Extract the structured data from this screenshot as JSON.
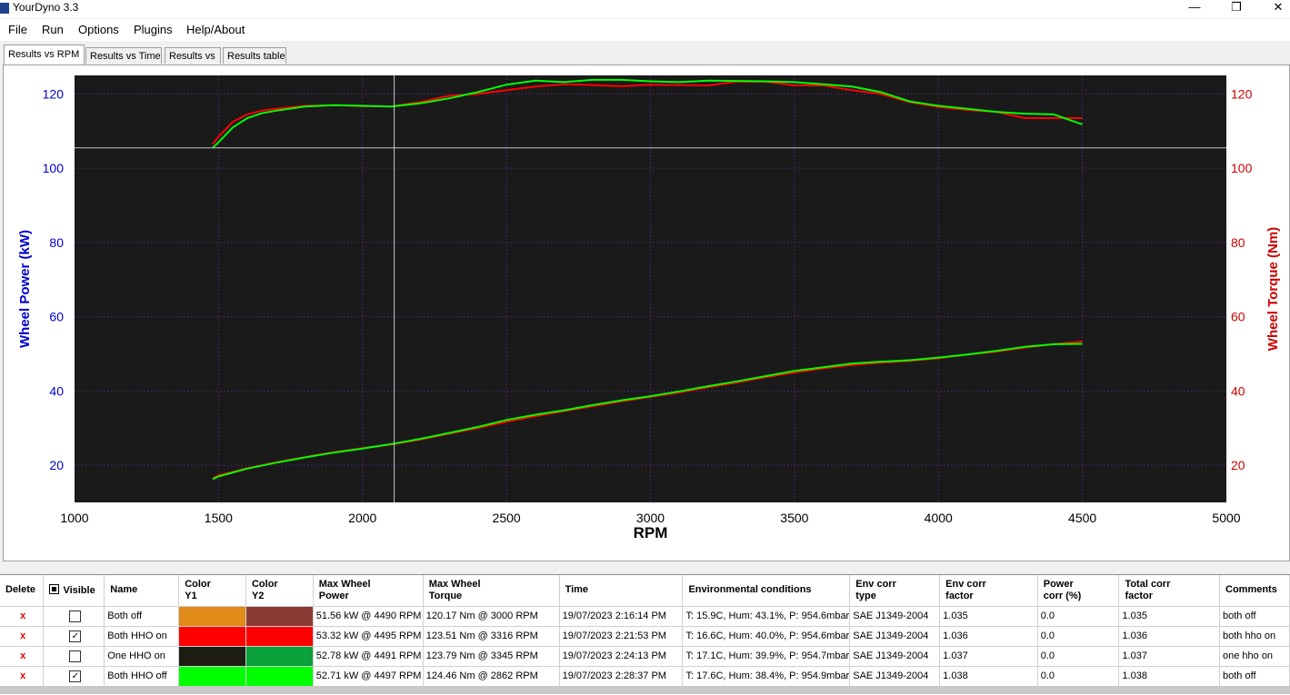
{
  "window": {
    "title": "YourDyno 3.3",
    "minimize_glyph": "—",
    "maximize_glyph": "❐",
    "close_glyph": "✕"
  },
  "menu": [
    {
      "label": "File"
    },
    {
      "label": "Run"
    },
    {
      "label": "Options"
    },
    {
      "label": "Plugins"
    },
    {
      "label": "Help/About"
    }
  ],
  "tabs": [
    {
      "label": "Results vs RPM",
      "active": true
    },
    {
      "label": "Results vs Time",
      "active": false
    },
    {
      "label": "Results vs",
      "active": false
    },
    {
      "label": "Results table",
      "active": false
    }
  ],
  "chart_data": {
    "type": "line",
    "xlabel": "RPM",
    "ylabel": "Wheel Power (kW)",
    "y2label": "Wheel Torque (Nm)",
    "xlim": [
      1000,
      5000
    ],
    "ylim": [
      10,
      125
    ],
    "y2lim": [
      10,
      125
    ],
    "xticks": [
      1000,
      1500,
      2000,
      2500,
      3000,
      3500,
      4000,
      4500,
      5000
    ],
    "yticks": [
      20,
      40,
      60,
      80,
      100,
      120
    ],
    "y2ticks": [
      20,
      40,
      60,
      80,
      100,
      120
    ],
    "background": "#1a1a1a",
    "grid": true,
    "cursor": {
      "x": 2110,
      "y": 105.5
    },
    "colors": {
      "left_axis": "#0000cc",
      "right_axis": "#cc0000"
    },
    "series": [
      {
        "name": "Both HHO on",
        "axis": "y2",
        "color": "#ff0000",
        "x": [
          1480,
          1500,
          1550,
          1600,
          1650,
          1700,
          1800,
          1900,
          2000,
          2100,
          2200,
          2300,
          2400,
          2500,
          2600,
          2700,
          2800,
          2900,
          3000,
          3100,
          3200,
          3300,
          3400,
          3500,
          3600,
          3700,
          3800,
          3900,
          4000,
          4100,
          4200,
          4300,
          4400,
          4500
        ],
        "values": [
          106.5,
          108.5,
          112.5,
          114.5,
          115.5,
          116,
          116.8,
          117,
          116.7,
          116.6,
          117.8,
          119.5,
          120,
          121,
          122,
          122.6,
          122.4,
          122.1,
          122.5,
          122.4,
          122.3,
          123.3,
          123.3,
          122.3,
          122.3,
          121,
          120,
          117.8,
          116.5,
          115.7,
          115.2,
          113.5,
          113.5,
          113.5
        ]
      },
      {
        "name": "Both HHO off",
        "axis": "y2",
        "color": "#00ff00",
        "x": [
          1480,
          1500,
          1550,
          1600,
          1650,
          1700,
          1800,
          1900,
          2000,
          2100,
          2200,
          2300,
          2400,
          2500,
          2600,
          2700,
          2800,
          2900,
          3000,
          3100,
          3200,
          3300,
          3400,
          3500,
          3600,
          3700,
          3800,
          3900,
          4000,
          4100,
          4200,
          4300,
          4400,
          4500
        ],
        "values": [
          105.5,
          107,
          111,
          113.5,
          114.8,
          115.5,
          116.6,
          117,
          116.8,
          116.6,
          117.5,
          118.8,
          120.5,
          122.5,
          123.6,
          123.2,
          123.8,
          123.8,
          123.4,
          123.2,
          123.6,
          123.5,
          123.4,
          123.2,
          122.6,
          122,
          120.5,
          118,
          116.8,
          116,
          115.2,
          114.7,
          114.5,
          111.8
        ]
      },
      {
        "name": "Both HHO on",
        "axis": "y",
        "color": "#ff0000",
        "x": [
          1480,
          1500,
          1600,
          1700,
          1800,
          1900,
          2000,
          2100,
          2200,
          2300,
          2400,
          2500,
          2600,
          2700,
          2800,
          2900,
          3000,
          3100,
          3200,
          3300,
          3400,
          3500,
          3600,
          3700,
          3800,
          3900,
          4000,
          4100,
          4200,
          4300,
          4400,
          4500
        ],
        "values": [
          16.5,
          17.3,
          19.2,
          20.8,
          22.2,
          23.5,
          24.6,
          25.6,
          26.9,
          28.5,
          30,
          31.7,
          33.2,
          34.6,
          35.9,
          37.2,
          38.4,
          39.6,
          41,
          42.3,
          43.7,
          45,
          46.1,
          47,
          47.6,
          48.1,
          48.8,
          49.8,
          50.6,
          51.7,
          52.6,
          53.3
        ]
      },
      {
        "name": "Both HHO off",
        "axis": "y",
        "color": "#00ff00",
        "x": [
          1480,
          1500,
          1600,
          1700,
          1800,
          1900,
          2000,
          2100,
          2200,
          2300,
          2400,
          2500,
          2600,
          2700,
          2800,
          2900,
          3000,
          3100,
          3200,
          3300,
          3400,
          3500,
          3600,
          3700,
          3800,
          3900,
          4000,
          4100,
          4200,
          4300,
          4400,
          4500
        ],
        "values": [
          16.3,
          17,
          19.1,
          20.7,
          22.1,
          23.4,
          24.5,
          25.7,
          27.1,
          28.7,
          30.3,
          32.2,
          33.6,
          34.8,
          36.2,
          37.5,
          38.6,
          39.9,
          41.3,
          42.6,
          44,
          45.4,
          46.4,
          47.4,
          47.9,
          48.3,
          49,
          49.8,
          50.8,
          51.9,
          52.6,
          52.7
        ]
      }
    ]
  },
  "grid": {
    "headers": {
      "delete": "Delete",
      "visible": "Visible",
      "name": "Name",
      "color_y1_a": "Color",
      "color_y1_b": "Y1",
      "color_y2_a": "Color",
      "color_y2_b": "Y2",
      "max_power_a": "Max Wheel",
      "max_power_b": "Power",
      "max_torque_a": "Max Wheel",
      "max_torque_b": "Torque",
      "time": "Time",
      "env": "Environmental conditions",
      "env_type_a": "Env corr",
      "env_type_b": "type",
      "env_factor_a": "Env corr",
      "env_factor_b": "factor",
      "power_corr_a": "Power",
      "power_corr_b": "corr (%)",
      "total_corr_a": "Total corr",
      "total_corr_b": "factor",
      "comments": "Comments"
    },
    "rows": [
      {
        "delete": "x",
        "visible": false,
        "check": "",
        "name": "Both off",
        "color_y1": "#e08a17",
        "color_y2": "#8b3a33",
        "max_power": "51.56 kW @ 4490 RPM",
        "max_torque": "120.17 Nm @ 3000 RPM",
        "time": "19/07/2023 2:16:14 PM",
        "env": "T: 15.9C, Hum: 43.1%, P: 954.6mbar",
        "env_type": "SAE J1349-2004",
        "env_factor": "1.035",
        "power_corr": "0.0",
        "total_corr": "1.035",
        "comments": "both off"
      },
      {
        "delete": "x",
        "visible": true,
        "check": "✓",
        "name": "Both HHO on",
        "color_y1": "#ff0000",
        "color_y2": "#ff0000",
        "max_power": "53.32 kW @ 4495 RPM",
        "max_torque": "123.51 Nm @ 3316 RPM",
        "time": "19/07/2023 2:21:53 PM",
        "env": "T: 16.6C, Hum: 40.0%, P: 954.6mbar",
        "env_type": "SAE J1349-2004",
        "env_factor": "1.036",
        "power_corr": "0.0",
        "total_corr": "1.036",
        "comments": "both hho on"
      },
      {
        "delete": "x",
        "visible": false,
        "check": "",
        "name": "One HHO on",
        "color_y1": "#1d1d14",
        "color_y2": "#0aa03a",
        "max_power": "52.78 kW @ 4491 RPM",
        "max_torque": "123.79 Nm @ 3345 RPM",
        "time": "19/07/2023 2:24:13 PM",
        "env": "T: 17.1C, Hum: 39.9%, P: 954.7mbar",
        "env_type": "SAE J1349-2004",
        "env_factor": "1.037",
        "power_corr": "0.0",
        "total_corr": "1.037",
        "comments": "one hho on"
      },
      {
        "delete": "x",
        "visible": true,
        "check": "✓",
        "name": "Both HHO off",
        "color_y1": "#00ff00",
        "color_y2": "#00ff00",
        "max_power": "52.71 kW @ 4497 RPM",
        "max_torque": "124.46 Nm @ 2862 RPM",
        "time": "19/07/2023 2:28:37 PM",
        "env": "T: 17.6C, Hum: 38.4%, P: 954.9mbar",
        "env_type": "SAE J1349-2004",
        "env_factor": "1.038",
        "power_corr": "0.0",
        "total_corr": "1.038",
        "comments": "both off"
      }
    ]
  }
}
